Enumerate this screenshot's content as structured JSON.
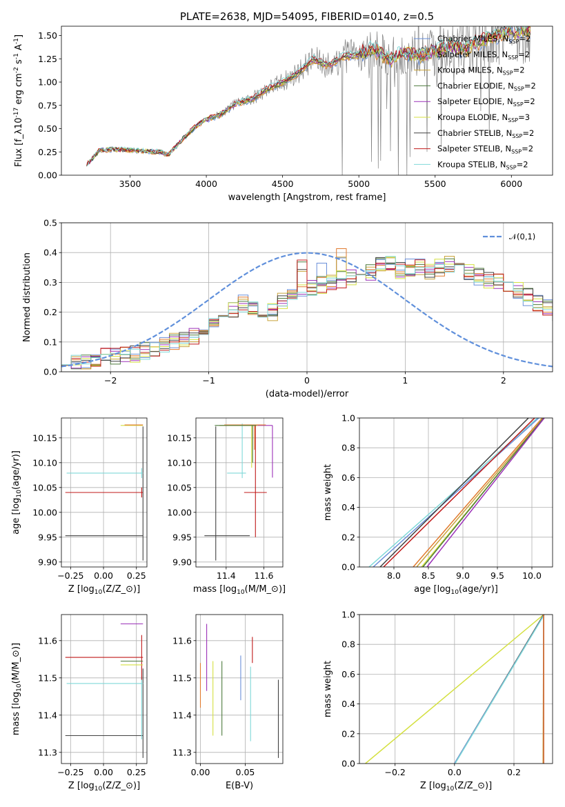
{
  "figure": {
    "title": "PLATE=2638, MJD=54095, FIBERID=0140, z=0.5"
  },
  "colors": {
    "Chabrier MILES": "#6a8fd8",
    "Salpeter MILES": "#e07a2e",
    "Kroupa MILES": "#c8a23a",
    "Chabrier ELODIE": "#4d7a3c",
    "Salpeter ELODIE": "#9b30b8",
    "Kroupa ELODIE": "#d4e040",
    "Chabrier STELIB": "#404040",
    "Salpeter STELIB": "#c01818",
    "Kroupa STELIB": "#7fd8d8",
    "data": "#808080",
    "gaussian": "#5f8fdb"
  },
  "chart_data": [
    {
      "id": "spectrum",
      "type": "line",
      "title": "PLATE=2638, MJD=54095, FIBERID=0140, z=0.5",
      "xlabel": "wavelength [Angstrom, rest frame]",
      "ylabel": "Flux [f$_\\lambda$10$^{-17}$ erg cm$^{-2}$ s$^{-1}$ A$^{-1}$]",
      "xlim": [
        3050,
        6270
      ],
      "ylim": [
        0,
        1.6
      ],
      "xticks": [
        3500,
        4000,
        4500,
        5000,
        5500,
        6000
      ],
      "yticks": [
        0.0,
        0.25,
        0.5,
        0.75,
        1.0,
        1.25,
        1.5
      ],
      "grid": false,
      "legend_position": "top-right",
      "series_names": [
        "Chabrier MILES, N$_{SSP}$=2",
        "Salpeter MILES, N$_{SSP}$=2",
        "Kroupa MILES, N$_{SSP}$=2",
        "Chabrier ELODIE, N$_{SSP}$=2",
        "Salpeter ELODIE, N$_{SSP}$=2",
        "Kroupa ELODIE, N$_{SSP}$=3",
        "Chabrier STELIB, N$_{SSP}$=2",
        "Salpeter STELIB, N$_{SSP}$=2",
        "Kroupa STELIB, N$_{SSP}$=2"
      ],
      "model_continuum": {
        "x": [
          3210,
          3300,
          3400,
          3500,
          3600,
          3700,
          3750,
          3850,
          3950,
          4000,
          4100,
          4200,
          4300,
          4400,
          4500,
          4600,
          4700,
          4800,
          4900,
          5000,
          5100,
          5200,
          5300,
          5400,
          5500,
          5600,
          5700,
          5800,
          5900,
          6000,
          6100
        ],
        "y": [
          0.1,
          0.27,
          0.28,
          0.27,
          0.26,
          0.25,
          0.22,
          0.4,
          0.55,
          0.6,
          0.66,
          0.78,
          0.82,
          0.93,
          1.0,
          1.1,
          1.25,
          1.18,
          1.28,
          1.3,
          1.36,
          1.25,
          1.32,
          1.3,
          1.34,
          1.4,
          1.36,
          1.45,
          1.52,
          1.55,
          1.56
        ]
      }
    },
    {
      "id": "residuals",
      "type": "line",
      "xlabel": "(data-model)/error",
      "ylabel": "Normed distribution",
      "xlim": [
        -2.5,
        2.5
      ],
      "ylim": [
        0,
        0.5
      ],
      "xticks": [
        -2,
        -1,
        0,
        1,
        2
      ],
      "yticks": [
        0.0,
        0.1,
        0.2,
        0.3,
        0.4,
        0.5
      ],
      "grid": true,
      "legend_position": "top-right",
      "legend_label": "$\\mathcal{N}(0,1)$",
      "bin_width": 0.1,
      "bin_start": -2.5,
      "histogram_envelope": [
        0.03,
        0.03,
        0.03,
        0.04,
        0.05,
        0.05,
        0.06,
        0.06,
        0.07,
        0.08,
        0.09,
        0.1,
        0.11,
        0.12,
        0.14,
        0.16,
        0.18,
        0.21,
        0.23,
        0.21,
        0.17,
        0.2,
        0.24,
        0.26,
        0.27,
        0.28,
        0.29,
        0.3,
        0.31,
        0.32,
        0.33,
        0.33,
        0.36,
        0.36,
        0.34,
        0.35,
        0.35,
        0.34,
        0.35,
        0.36,
        0.34,
        0.33,
        0.32,
        0.31,
        0.3,
        0.28,
        0.27,
        0.25,
        0.23,
        0.22,
        0.2,
        0.18,
        0.17,
        0.15,
        0.14,
        0.12,
        0.11,
        0.1,
        0.09,
        0.08,
        0.07,
        0.06,
        0.06,
        0.05
      ]
    },
    {
      "id": "age-vs-Z",
      "type": "scatter",
      "xlabel": "Z [log$_{10}$($Z/Z_\\odot$)]",
      "ylabel": "age  [log$_{10}$($age/yr$)]",
      "xlim": [
        -0.32,
        0.33
      ],
      "ylim": [
        9.89,
        10.19
      ],
      "xticks": [
        -0.25,
        0.0,
        0.25
      ],
      "yticks": [
        9.9,
        9.95,
        10.0,
        10.05,
        10.1,
        10.15
      ],
      "grid": true,
      "points": [
        {
          "series": "Chabrier STELIB",
          "x": 0.3,
          "y": 9.953,
          "xerr": [
            0.59,
            0.0
          ],
          "yerr": [
            0.05,
            0.22
          ]
        },
        {
          "series": "Salpeter STELIB",
          "x": 0.29,
          "y": 10.04,
          "xerr": [
            0.58,
            0.01
          ],
          "yerr": [
            0.01,
            0.01
          ]
        },
        {
          "series": "Kroupa STELIB",
          "x": 0.29,
          "y": 10.079,
          "xerr": [
            0.57,
            0.01
          ],
          "yerr": [
            0.01,
            0.01
          ]
        },
        {
          "series": "Kroupa ELODIE",
          "x": 0.3,
          "y": 10.175,
          "xerr": [
            0.17,
            0.0
          ],
          "yerr": [
            0.0,
            0.0
          ]
        },
        {
          "series": "Salpeter MILES",
          "x": 0.3,
          "y": 10.176,
          "xerr": [
            0.14,
            0.0
          ],
          "yerr": [
            0.0,
            0.0
          ]
        }
      ]
    },
    {
      "id": "age-vs-mass",
      "type": "scatter",
      "xlabel": "mass [log$_{10}$($M/M_\\odot$)]",
      "ylabel": "",
      "xlim": [
        11.24,
        11.7
      ],
      "ylim": [
        9.89,
        10.19
      ],
      "xticks": [
        11.4,
        11.6
      ],
      "yticks": [
        9.9,
        9.95,
        10.0,
        10.05,
        10.1,
        10.15
      ],
      "grid": true,
      "points": [
        {
          "series": "Chabrier STELIB",
          "x": 11.345,
          "y": 9.953,
          "xerr": [
            0.06,
            0.18
          ],
          "yerr": [
            0.05,
            0.22
          ]
        },
        {
          "series": "Salpeter STELIB",
          "x": 11.555,
          "y": 10.04,
          "xerr": [
            0.06,
            0.06
          ],
          "yerr": [
            0.09,
            0.136
          ]
        },
        {
          "series": "Kroupa STELIB",
          "x": 11.485,
          "y": 10.079,
          "xerr": [
            0.08,
            0.02
          ],
          "yerr": [
            0.01,
            0.1
          ]
        },
        {
          "series": "Salpeter ELODIE",
          "x": 11.645,
          "y": 10.175,
          "xerr": [
            0.28,
            0.0
          ],
          "yerr": [
            0.105,
            0.0
          ]
        },
        {
          "series": "Kroupa ELODIE",
          "x": 11.535,
          "y": 10.175,
          "xerr": [
            0.17,
            0.03
          ],
          "yerr": [
            0.085,
            0.0
          ]
        },
        {
          "series": "Salpeter MILES",
          "x": 11.55,
          "y": 10.176,
          "xerr": [
            0.16,
            0.06
          ],
          "yerr": [
            0.05,
            0.0
          ]
        },
        {
          "series": "Chabrier ELODIE",
          "x": 11.54,
          "y": 10.175,
          "xerr": [
            0.2,
            0.02
          ],
          "yerr": [
            0.075,
            0.0
          ]
        }
      ]
    },
    {
      "id": "age-weight",
      "type": "line",
      "xlabel": "age  [log$_{10}$($age/yr$)]",
      "ylabel": "mass weight",
      "xlim": [
        7.5,
        10.3
      ],
      "ylim": [
        0,
        1
      ],
      "xticks": [
        8.0,
        8.5,
        9.0,
        9.5,
        10.0
      ],
      "yticks": [
        0.0,
        0.2,
        0.4,
        0.6,
        0.8,
        1.0
      ],
      "grid": true,
      "lines": [
        {
          "series": "Kroupa STELIB",
          "x": [
            7.64,
            10.08
          ],
          "y": [
            0,
            1
          ]
        },
        {
          "series": "Chabrier MILES",
          "x": [
            7.7,
            10.1
          ],
          "y": [
            0,
            1
          ]
        },
        {
          "series": "Chabrier STELIB",
          "x": [
            7.8,
            9.95
          ],
          "y": [
            0,
            1
          ]
        },
        {
          "series": "Salpeter STELIB",
          "x": [
            7.85,
            10.04
          ],
          "y": [
            0,
            1
          ]
        },
        {
          "series": "Salpeter MILES",
          "x": [
            8.28,
            10.15
          ],
          "y": [
            0,
            1
          ]
        },
        {
          "series": "Kroupa MILES",
          "x": [
            8.33,
            10.17
          ],
          "y": [
            0,
            1
          ]
        },
        {
          "series": "Kroupa ELODIE",
          "x": [
            8.4,
            10.18
          ],
          "y": [
            0,
            1
          ]
        },
        {
          "series": "Chabrier ELODIE",
          "x": [
            8.42,
            10.17
          ],
          "y": [
            0,
            1
          ]
        },
        {
          "series": "Salpeter ELODIE",
          "x": [
            8.48,
            10.18
          ],
          "y": [
            0,
            1
          ]
        }
      ]
    },
    {
      "id": "mass-vs-Z",
      "type": "scatter",
      "xlabel": "Z [log$_{10}$($Z/Z_\\odot$)]",
      "ylabel": "mass [log$_{10}$($M/M_\\odot$)]",
      "xlim": [
        -0.32,
        0.33
      ],
      "ylim": [
        11.27,
        11.67
      ],
      "xticks": [
        -0.25,
        0.0,
        0.25
      ],
      "yticks": [
        11.3,
        11.4,
        11.5,
        11.6
      ],
      "grid": true,
      "points": [
        {
          "series": "Chabrier STELIB",
          "x": 0.3,
          "y": 11.345,
          "xerr": [
            0.59,
            0.0
          ],
          "yerr": [
            0.06,
            0.18
          ]
        },
        {
          "series": "Kroupa STELIB",
          "x": 0.29,
          "y": 11.485,
          "xerr": [
            0.57,
            0.01
          ],
          "yerr": [
            0.15,
            0.02
          ]
        },
        {
          "series": "Salpeter STELIB",
          "x": 0.29,
          "y": 11.555,
          "xerr": [
            0.58,
            0.01
          ],
          "yerr": [
            0.06,
            0.06
          ]
        },
        {
          "series": "Salpeter ELODIE",
          "x": 0.3,
          "y": 11.645,
          "xerr": [
            0.17,
            0.0
          ],
          "yerr": [
            0.0,
            0.0
          ]
        },
        {
          "series": "Kroupa ELODIE",
          "x": 0.3,
          "y": 11.535,
          "xerr": [
            0.17,
            0.0
          ],
          "yerr": [
            0.0,
            0.0
          ]
        },
        {
          "series": "Chabrier ELODIE",
          "x": 0.3,
          "y": 11.545,
          "xerr": [
            0.17,
            0.0
          ],
          "yerr": [
            0.0,
            0.0
          ]
        }
      ]
    },
    {
      "id": "mass-vs-EBV",
      "type": "scatter",
      "xlabel": "E(B-V)",
      "ylabel": "",
      "xlim": [
        -0.005,
        0.092
      ],
      "ylim": [
        11.27,
        11.67
      ],
      "xticks": [
        0.0,
        0.05
      ],
      "yticks": [
        11.3,
        11.4,
        11.5,
        11.6
      ],
      "grid": true,
      "points": [
        {
          "series": "Salpeter MILES",
          "x": 0.0,
          "y": 11.48,
          "yerr": [
            0.06,
            0.06
          ]
        },
        {
          "series": "Salpeter ELODIE",
          "x": 0.007,
          "y": 11.555,
          "yerr": [
            0.09,
            0.09
          ]
        },
        {
          "series": "Kroupa ELODIE",
          "x": 0.014,
          "y": 11.445,
          "yerr": [
            0.1,
            0.1
          ]
        },
        {
          "series": "Chabrier ELODIE",
          "x": 0.024,
          "y": 11.445,
          "yerr": [
            0.1,
            0.1
          ]
        },
        {
          "series": "Chabrier MILES",
          "x": 0.045,
          "y": 11.5,
          "yerr": [
            0.06,
            0.06
          ]
        },
        {
          "series": "Kroupa STELIB",
          "x": 0.056,
          "y": 11.43,
          "yerr": [
            0.1,
            0.1
          ]
        },
        {
          "series": "Salpeter STELIB",
          "x": 0.058,
          "y": 11.575,
          "yerr": [
            0.035,
            0.035
          ]
        },
        {
          "series": "Chabrier STELIB",
          "x": 0.087,
          "y": 11.39,
          "yerr": [
            0.105,
            0.105
          ]
        }
      ]
    },
    {
      "id": "Z-weight",
      "type": "line",
      "xlabel": "Z [log$_{10}$($Z/Z_\\odot$)]",
      "ylabel": "mass weight",
      "xlim": [
        -0.32,
        0.33
      ],
      "ylim": [
        0,
        1
      ],
      "xticks": [
        -0.2,
        0.0,
        0.2
      ],
      "yticks": [
        0.0,
        0.2,
        0.4,
        0.6,
        0.8,
        1.0
      ],
      "grid": true,
      "lines": [
        {
          "series": "Kroupa ELODIE",
          "x": [
            -0.3,
            0.3
          ],
          "y": [
            0,
            1
          ]
        },
        {
          "series": "Chabrier STELIB",
          "x": [
            0.0,
            0.3
          ],
          "y": [
            0,
            1
          ]
        },
        {
          "series": "Chabrier MILES",
          "x": [
            0.0,
            0.302
          ],
          "y": [
            0,
            1
          ]
        },
        {
          "series": "Kroupa STELIB",
          "x": [
            0.002,
            0.302
          ],
          "y": [
            0,
            1
          ]
        },
        {
          "series": "Kroupa MILES",
          "x": [
            0.298,
            0.3
          ],
          "y": [
            0,
            1
          ]
        },
        {
          "series": "Chabrier ELODIE",
          "x": [
            0.3,
            0.3
          ],
          "y": [
            0,
            1
          ]
        },
        {
          "series": "Salpeter ELODIE",
          "x": [
            0.3,
            0.3
          ],
          "y": [
            0,
            1
          ]
        },
        {
          "series": "Salpeter MILES",
          "x": [
            0.3,
            0.3
          ],
          "y": [
            0,
            1
          ]
        }
      ]
    }
  ]
}
